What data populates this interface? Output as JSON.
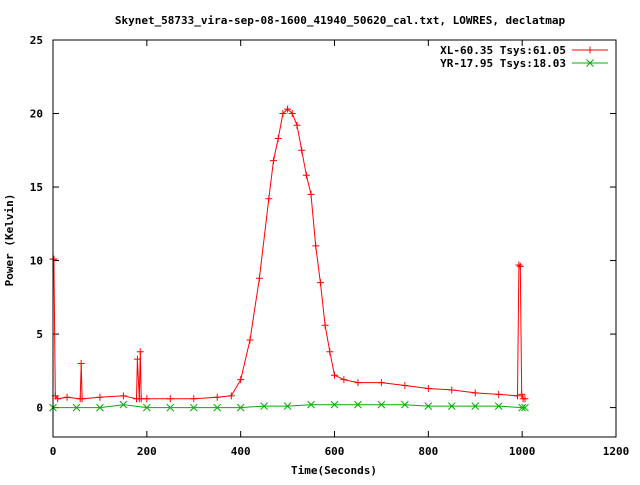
{
  "chart_data": {
    "type": "line",
    "title": "Skynet_58733_vira-sep-08-1600_41940_50620_cal.txt, LOWRES, declatmap",
    "xlabel": "Time(Seconds)",
    "ylabel": "Power (Kelvin)",
    "xlim": [
      0,
      1200
    ],
    "ylim": [
      -2,
      25
    ],
    "x_ticks": [
      0,
      200,
      400,
      600,
      800,
      1000,
      1200
    ],
    "y_ticks": [
      0,
      5,
      10,
      15,
      20,
      25
    ],
    "x_tick_labels": [
      "0",
      "200",
      "400",
      "600",
      "800",
      "1000",
      "1200"
    ],
    "y_tick_labels": [
      "0",
      "5",
      "10",
      "15",
      "20",
      "25"
    ],
    "grid": false,
    "legend_position": "top-right",
    "series": [
      {
        "name": "XL-60.35 Tsys:61.05",
        "color": "#ff0000",
        "marker": "plus",
        "x": [
          0,
          2,
          5,
          10,
          30,
          58,
          60,
          62,
          100,
          150,
          178,
          180,
          184,
          186,
          188,
          200,
          250,
          300,
          350,
          380,
          400,
          420,
          440,
          460,
          470,
          480,
          490,
          500,
          510,
          520,
          530,
          540,
          550,
          560,
          570,
          580,
          590,
          600,
          620,
          650,
          700,
          750,
          800,
          850,
          900,
          950,
          990,
          993,
          996,
          999,
          1002,
          1006
        ],
        "y": [
          10.1,
          10.1,
          0.8,
          0.6,
          0.7,
          0.6,
          3.0,
          0.6,
          0.7,
          0.8,
          0.6,
          3.3,
          0.6,
          3.8,
          0.6,
          0.6,
          0.6,
          0.6,
          0.7,
          0.8,
          1.9,
          4.6,
          8.8,
          14.2,
          16.8,
          18.3,
          20.0,
          20.3,
          20.0,
          19.2,
          17.5,
          15.8,
          14.5,
          11.0,
          8.5,
          5.6,
          3.8,
          2.2,
          1.9,
          1.7,
          1.7,
          1.5,
          1.3,
          1.2,
          1.0,
          0.9,
          0.8,
          9.7,
          9.6,
          0.9,
          0.6,
          0.6
        ]
      },
      {
        "name": "YR-17.95 Tsys:18.03",
        "color": "#00b000",
        "marker": "cross",
        "x": [
          0,
          50,
          100,
          150,
          200,
          250,
          300,
          350,
          400,
          450,
          500,
          550,
          600,
          650,
          700,
          750,
          800,
          850,
          900,
          950,
          1000,
          1006
        ],
        "y": [
          0.0,
          0.0,
          0.0,
          0.2,
          0.0,
          0.0,
          0.0,
          0.0,
          0.0,
          0.1,
          0.1,
          0.2,
          0.2,
          0.2,
          0.2,
          0.2,
          0.1,
          0.1,
          0.1,
          0.1,
          0.0,
          0.0
        ]
      }
    ]
  }
}
